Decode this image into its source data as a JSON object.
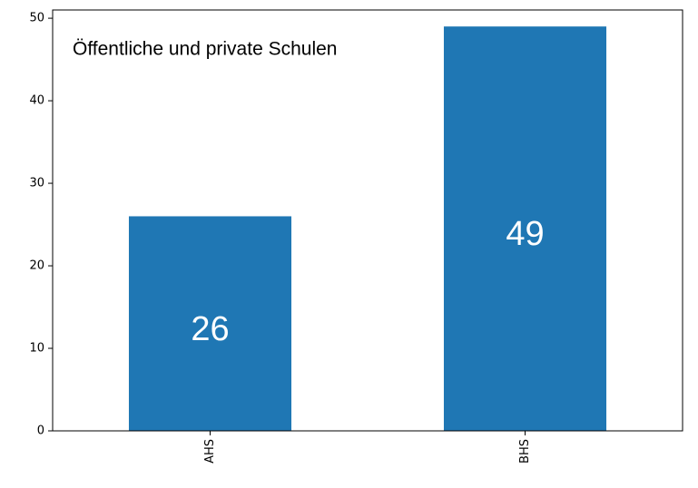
{
  "chart_data": {
    "type": "bar",
    "annotation": "Öffentliche und private Schulen",
    "categories": [
      "AHS",
      "BHS"
    ],
    "values": [
      26,
      49
    ],
    "color": "#1f77b4",
    "ylim": [
      0,
      51
    ],
    "yticks": [
      0,
      10,
      20,
      30,
      40,
      50
    ],
    "grid": false
  }
}
